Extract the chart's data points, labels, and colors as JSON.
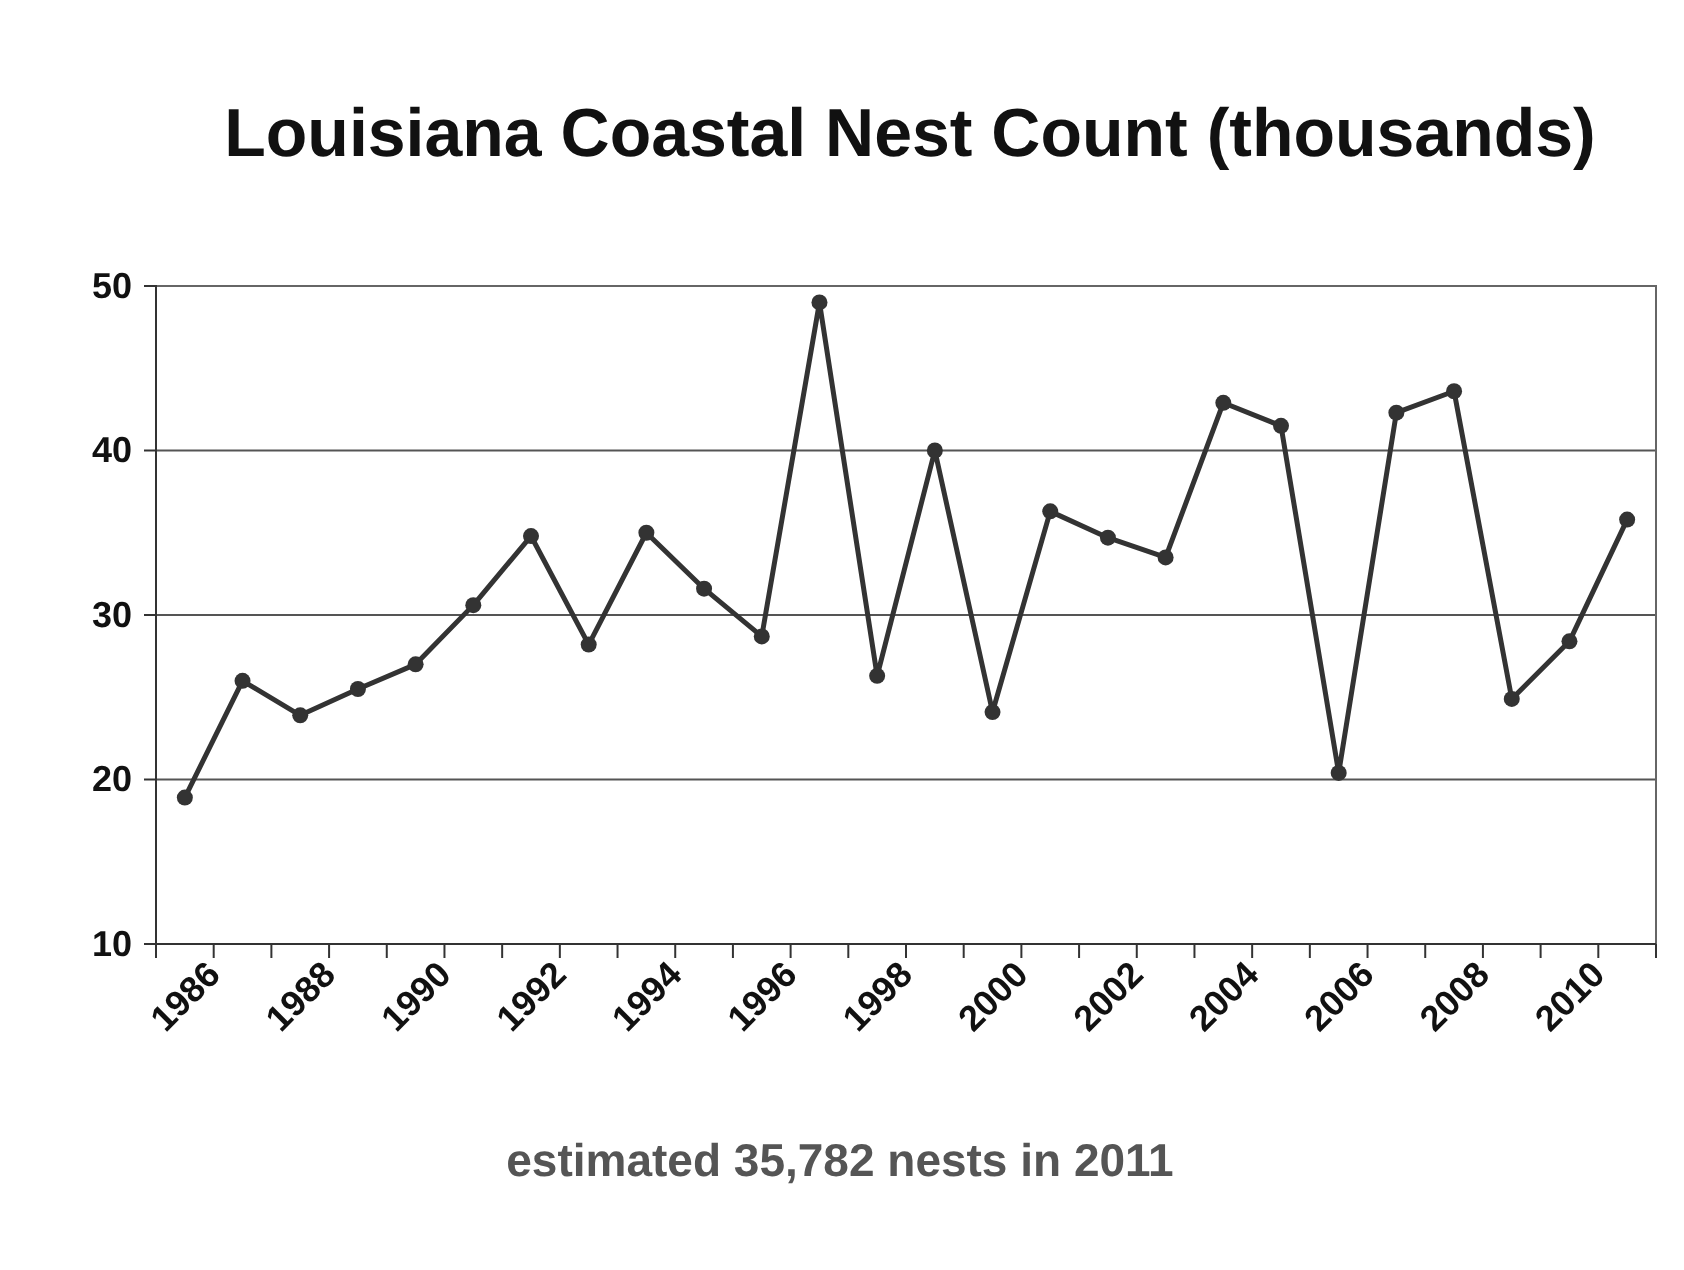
{
  "chart_data": {
    "type": "line",
    "title": "Louisiana Coastal Nest Count (thousands)",
    "categories": [
      "1986",
      null,
      "1988",
      null,
      "1990",
      null,
      "1992",
      null,
      "1994",
      null,
      "1996",
      null,
      "1998",
      null,
      "2000",
      null,
      "2002",
      null,
      "2004",
      null,
      "2006",
      null,
      "2008",
      null,
      "2010",
      null
    ],
    "series": [
      {
        "color": "#333333",
        "values": [
          18.9,
          26.0,
          23.9,
          25.5,
          27.0,
          30.6,
          34.8,
          28.2,
          35.0,
          31.6,
          28.7,
          49.0,
          26.3,
          40.0,
          24.1,
          36.3,
          34.7,
          33.5,
          42.9,
          41.5,
          20.4,
          42.3,
          43.6,
          24.9,
          28.4,
          35.8
        ]
      }
    ],
    "ylim": [
      10,
      50
    ],
    "yticks": [
      10,
      20,
      30,
      40,
      50
    ],
    "grid": "y",
    "marker": "circle",
    "line_style": "solid",
    "legend": false,
    "annotations": [
      "estimated 35,782 nests in 2011"
    ]
  }
}
